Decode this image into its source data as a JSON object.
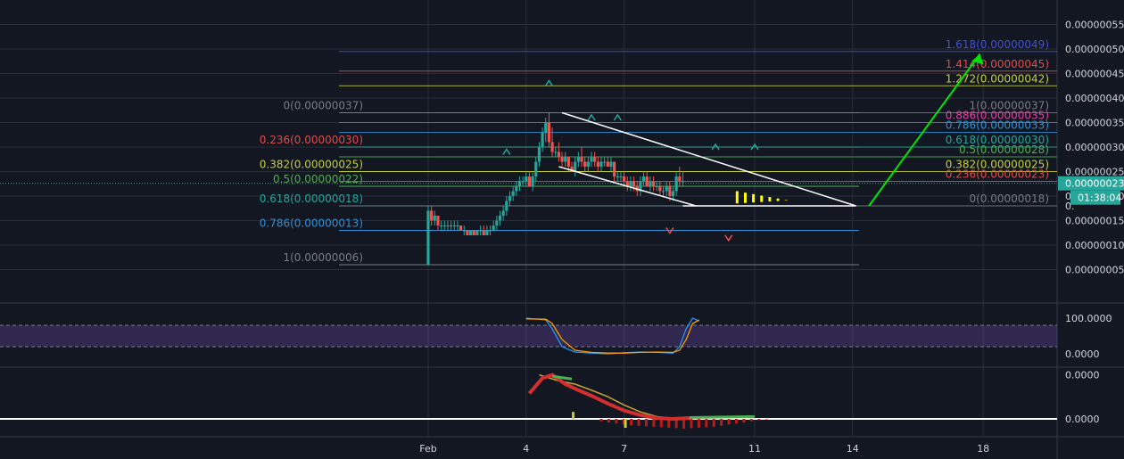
{
  "chart_data": {
    "type": "candlestick",
    "price_axis": {
      "ticks": [
        "0.00000055",
        "0.00000050",
        "0.00000045",
        "0.00000040",
        "0.00000035",
        "0.00000030",
        "0.00000025",
        "0.00000020",
        "0.00000015",
        "0.00000010",
        "0.00000005"
      ],
      "tick_values": [
        55,
        50,
        45,
        40,
        35,
        30,
        25,
        20,
        15,
        10,
        5
      ],
      "ylim": [
        0,
        56
      ],
      "current_price": "0.00000023",
      "current_value": 22.6,
      "countdown": "01:38:04",
      "partial_label": "0.",
      "partial_value": 18
    },
    "time_axis": {
      "labels": [
        "Feb",
        "4",
        "7",
        "11",
        "14",
        "18"
      ],
      "label_days": [
        1,
        4,
        7,
        11,
        14,
        18
      ]
    },
    "candles": [
      {
        "d": 1.0,
        "o": 6,
        "h": 18,
        "l": 6,
        "c": 17
      },
      {
        "d": 1.1,
        "o": 17,
        "h": 18,
        "l": 14,
        "c": 15
      },
      {
        "d": 1.2,
        "o": 15,
        "h": 17,
        "l": 14,
        "c": 16
      },
      {
        "d": 1.3,
        "o": 16,
        "h": 16,
        "l": 13,
        "c": 14
      },
      {
        "d": 1.4,
        "o": 14,
        "h": 15,
        "l": 13,
        "c": 14
      },
      {
        "d": 1.5,
        "o": 14,
        "h": 15,
        "l": 13,
        "c": 14
      },
      {
        "d": 1.6,
        "o": 14,
        "h": 15,
        "l": 13,
        "c": 14
      },
      {
        "d": 1.7,
        "o": 14,
        "h": 15,
        "l": 13,
        "c": 14
      },
      {
        "d": 1.8,
        "o": 14,
        "h": 15,
        "l": 13,
        "c": 14
      },
      {
        "d": 1.9,
        "o": 14,
        "h": 15,
        "l": 13,
        "c": 14
      },
      {
        "d": 2.0,
        "o": 14,
        "h": 14,
        "l": 13,
        "c": 13
      },
      {
        "d": 2.1,
        "o": 13,
        "h": 14,
        "l": 12,
        "c": 13
      },
      {
        "d": 2.2,
        "o": 13,
        "h": 13,
        "l": 12,
        "c": 12
      },
      {
        "d": 2.3,
        "o": 12,
        "h": 13,
        "l": 12,
        "c": 13
      },
      {
        "d": 2.4,
        "o": 13,
        "h": 13,
        "l": 12,
        "c": 12
      },
      {
        "d": 2.5,
        "o": 12,
        "h": 13,
        "l": 12,
        "c": 13
      },
      {
        "d": 2.6,
        "o": 13,
        "h": 14,
        "l": 12,
        "c": 13
      },
      {
        "d": 2.7,
        "o": 13,
        "h": 14,
        "l": 12,
        "c": 12
      },
      {
        "d": 2.8,
        "o": 12,
        "h": 14,
        "l": 12,
        "c": 13
      },
      {
        "d": 2.9,
        "o": 13,
        "h": 14,
        "l": 12,
        "c": 13
      },
      {
        "d": 3.0,
        "o": 13,
        "h": 15,
        "l": 13,
        "c": 14
      },
      {
        "d": 3.1,
        "o": 14,
        "h": 16,
        "l": 13,
        "c": 15
      },
      {
        "d": 3.2,
        "o": 15,
        "h": 17,
        "l": 14,
        "c": 16
      },
      {
        "d": 3.3,
        "o": 16,
        "h": 18,
        "l": 15,
        "c": 17
      },
      {
        "d": 3.4,
        "o": 17,
        "h": 20,
        "l": 16,
        "c": 19
      },
      {
        "d": 3.5,
        "o": 19,
        "h": 21,
        "l": 18,
        "c": 20
      },
      {
        "d": 3.6,
        "o": 20,
        "h": 22,
        "l": 19,
        "c": 21
      },
      {
        "d": 3.7,
        "o": 21,
        "h": 23,
        "l": 20,
        "c": 22
      },
      {
        "d": 3.8,
        "o": 22,
        "h": 24,
        "l": 21,
        "c": 23
      },
      {
        "d": 3.9,
        "o": 23,
        "h": 24,
        "l": 22,
        "c": 23
      },
      {
        "d": 4.0,
        "o": 23,
        "h": 25,
        "l": 22,
        "c": 24
      },
      {
        "d": 4.1,
        "o": 24,
        "h": 25,
        "l": 22,
        "c": 22
      },
      {
        "d": 4.2,
        "o": 22,
        "h": 25,
        "l": 21,
        "c": 24
      },
      {
        "d": 4.3,
        "o": 24,
        "h": 28,
        "l": 23,
        "c": 27
      },
      {
        "d": 4.4,
        "o": 27,
        "h": 31,
        "l": 26,
        "c": 30
      },
      {
        "d": 4.5,
        "o": 30,
        "h": 34,
        "l": 29,
        "c": 33
      },
      {
        "d": 4.6,
        "o": 33,
        "h": 36,
        "l": 31,
        "c": 35
      },
      {
        "d": 4.7,
        "o": 35,
        "h": 37,
        "l": 30,
        "c": 31
      },
      {
        "d": 4.8,
        "o": 31,
        "h": 34,
        "l": 28,
        "c": 29
      },
      {
        "d": 4.9,
        "o": 29,
        "h": 30,
        "l": 28,
        "c": 29
      },
      {
        "d": 5.0,
        "o": 29,
        "h": 31,
        "l": 27,
        "c": 28
      },
      {
        "d": 5.1,
        "o": 28,
        "h": 29,
        "l": 26,
        "c": 27
      },
      {
        "d": 5.2,
        "o": 27,
        "h": 29,
        "l": 26,
        "c": 28
      },
      {
        "d": 5.3,
        "o": 28,
        "h": 28,
        "l": 25,
        "c": 26
      },
      {
        "d": 5.4,
        "o": 26,
        "h": 27,
        "l": 25,
        "c": 25
      },
      {
        "d": 5.5,
        "o": 25,
        "h": 28,
        "l": 24,
        "c": 27
      },
      {
        "d": 5.6,
        "o": 27,
        "h": 29,
        "l": 26,
        "c": 28
      },
      {
        "d": 5.7,
        "o": 28,
        "h": 30,
        "l": 26,
        "c": 27
      },
      {
        "d": 5.8,
        "o": 27,
        "h": 28,
        "l": 25,
        "c": 26
      },
      {
        "d": 5.9,
        "o": 26,
        "h": 28,
        "l": 25,
        "c": 27
      },
      {
        "d": 6.0,
        "o": 27,
        "h": 29,
        "l": 26,
        "c": 28
      },
      {
        "d": 6.1,
        "o": 28,
        "h": 29,
        "l": 26,
        "c": 27
      },
      {
        "d": 6.2,
        "o": 27,
        "h": 28,
        "l": 25,
        "c": 26
      },
      {
        "d": 6.3,
        "o": 26,
        "h": 28,
        "l": 25,
        "c": 27
      },
      {
        "d": 6.4,
        "o": 27,
        "h": 28,
        "l": 26,
        "c": 27
      },
      {
        "d": 6.5,
        "o": 27,
        "h": 28,
        "l": 26,
        "c": 26
      },
      {
        "d": 6.6,
        "o": 26,
        "h": 28,
        "l": 25,
        "c": 27
      },
      {
        "d": 6.7,
        "o": 27,
        "h": 27,
        "l": 23,
        "c": 24
      },
      {
        "d": 6.8,
        "o": 24,
        "h": 25,
        "l": 23,
        "c": 24
      },
      {
        "d": 6.9,
        "o": 24,
        "h": 25,
        "l": 23,
        "c": 24
      },
      {
        "d": 7.0,
        "o": 24,
        "h": 25,
        "l": 22,
        "c": 23
      },
      {
        "d": 7.1,
        "o": 23,
        "h": 24,
        "l": 21,
        "c": 22
      },
      {
        "d": 7.2,
        "o": 22,
        "h": 24,
        "l": 21,
        "c": 23
      },
      {
        "d": 7.3,
        "o": 23,
        "h": 24,
        "l": 21,
        "c": 22
      },
      {
        "d": 7.4,
        "o": 22,
        "h": 23,
        "l": 20,
        "c": 21
      },
      {
        "d": 7.5,
        "o": 21,
        "h": 24,
        "l": 20,
        "c": 23
      },
      {
        "d": 7.6,
        "o": 23,
        "h": 25,
        "l": 22,
        "c": 24
      },
      {
        "d": 7.7,
        "o": 24,
        "h": 25,
        "l": 22,
        "c": 22
      },
      {
        "d": 7.8,
        "o": 22,
        "h": 24,
        "l": 21,
        "c": 23
      },
      {
        "d": 7.9,
        "o": 23,
        "h": 24,
        "l": 21,
        "c": 22
      },
      {
        "d": 8.0,
        "o": 22,
        "h": 23,
        "l": 21,
        "c": 22
      },
      {
        "d": 8.1,
        "o": 22,
        "h": 23,
        "l": 20,
        "c": 21
      },
      {
        "d": 8.2,
        "o": 21,
        "h": 22,
        "l": 20,
        "c": 21
      },
      {
        "d": 8.3,
        "o": 21,
        "h": 23,
        "l": 20,
        "c": 22
      },
      {
        "d": 8.4,
        "o": 22,
        "h": 23,
        "l": 19,
        "c": 20
      },
      {
        "d": 8.5,
        "o": 20,
        "h": 22,
        "l": 19,
        "c": 21
      },
      {
        "d": 8.6,
        "o": 21,
        "h": 25,
        "l": 20,
        "c": 24
      },
      {
        "d": 8.7,
        "o": 24,
        "h": 26,
        "l": 22,
        "c": 23
      },
      {
        "d": 8.8,
        "o": 23,
        "h": 25,
        "l": 22,
        "c": 23
      }
    ],
    "fib_left": [
      {
        "label": "0(0.00000037)",
        "value": 37,
        "color": "#787b86"
      },
      {
        "label": "0.236(0.00000030)",
        "value": 30,
        "color": "#e04b4b"
      },
      {
        "label": "0.382(0.00000025)",
        "value": 25,
        "color": "#c2cf3c"
      },
      {
        "label": "0.5(0.00000022)",
        "value": 22,
        "color": "#4caf50"
      },
      {
        "label": "0.618(0.00000018)",
        "value": 18,
        "color": "#26a69a"
      },
      {
        "label": "0.786(0.00000013)",
        "value": 13,
        "color": "#2f8fd8"
      },
      {
        "label": "1(0.00000006)",
        "value": 6,
        "color": "#787b86"
      }
    ],
    "fib_right": [
      {
        "label": "1.618(0.00000049)",
        "value": 49.5,
        "color": "#3f51d8"
      },
      {
        "label": "1.414(0.00000045)",
        "value": 45.5,
        "color": "#e04b4b"
      },
      {
        "label": "1.272(0.00000042)",
        "value": 42.5,
        "color": "#c2cf3c"
      },
      {
        "label": "1(0.00000037)",
        "value": 37,
        "color": "#787b86"
      },
      {
        "label": "0.886(0.00000035)",
        "value": 35,
        "color": "#e040a0"
      },
      {
        "label": "0.786(0.00000033)",
        "value": 33,
        "color": "#2f8fd8"
      },
      {
        "label": "0.618(0.00000030)",
        "value": 30,
        "color": "#26a69a"
      },
      {
        "label": "0.5(0.00000028)",
        "value": 28,
        "color": "#4caf50"
      },
      {
        "label": "0.382(0.00000025)",
        "value": 25,
        "color": "#c2cf3c"
      },
      {
        "label": "0.236(0.00000023)",
        "value": 23,
        "color": "#e04b4b"
      },
      {
        "label": "0(0.00000018)",
        "value": 18,
        "color": "#787b86"
      }
    ],
    "stoch_axis": {
      "labels": [
        "100.0000",
        "0.0000"
      ],
      "band_upper": 80,
      "band_lower": 20
    },
    "stoch_k": [
      [
        4.0,
        100
      ],
      [
        4.6,
        95
      ],
      [
        4.8,
        70
      ],
      [
        5.1,
        20
      ],
      [
        5.5,
        5
      ],
      [
        6.0,
        2
      ],
      [
        6.5,
        0
      ],
      [
        7.0,
        3
      ],
      [
        7.5,
        5
      ],
      [
        8.0,
        4
      ],
      [
        8.5,
        2
      ],
      [
        8.7,
        20
      ],
      [
        8.9,
        70
      ],
      [
        9.1,
        100
      ],
      [
        9.3,
        92
      ]
    ],
    "stoch_d": [
      [
        4.0,
        98
      ],
      [
        4.6,
        97
      ],
      [
        4.8,
        85
      ],
      [
        5.1,
        40
      ],
      [
        5.5,
        10
      ],
      [
        6.0,
        4
      ],
      [
        6.5,
        2
      ],
      [
        7.0,
        2
      ],
      [
        7.5,
        4
      ],
      [
        8.0,
        5
      ],
      [
        8.5,
        4
      ],
      [
        8.7,
        10
      ],
      [
        8.9,
        40
      ],
      [
        9.1,
        85
      ],
      [
        9.3,
        95
      ]
    ],
    "macd_axis": {
      "labels": [
        "0.0000",
        "0.0000"
      ]
    },
    "macd": [
      [
        4.1,
        0.55
      ],
      [
        4.5,
        0.88
      ],
      [
        4.8,
        0.95
      ],
      [
        5.2,
        0.75
      ],
      [
        5.6,
        0.62
      ],
      [
        6.0,
        0.5
      ],
      [
        6.5,
        0.33
      ],
      [
        7.0,
        0.18
      ],
      [
        7.5,
        0.08
      ],
      [
        8.0,
        0.02
      ],
      [
        8.5,
        0.0
      ],
      [
        9.0,
        0.02
      ]
    ],
    "signal": [
      [
        4.4,
        0.95
      ],
      [
        5.0,
        0.82
      ],
      [
        5.5,
        0.75
      ],
      [
        6.0,
        0.62
      ],
      [
        6.5,
        0.48
      ],
      [
        7.0,
        0.3
      ],
      [
        7.5,
        0.15
      ],
      [
        8.0,
        0.05
      ],
      [
        8.5,
        0.01
      ],
      [
        9.0,
        0.0
      ]
    ],
    "histogram": [
      -0.05,
      -0.08,
      -0.1,
      -0.12,
      -0.14,
      -0.15,
      -0.16,
      -0.17,
      -0.18,
      -0.19,
      -0.2,
      -0.21,
      -0.2,
      -0.19,
      -0.18,
      -0.17,
      -0.15,
      -0.12,
      -0.1,
      -0.08,
      -0.05,
      -0.03,
      -0.01
    ]
  }
}
